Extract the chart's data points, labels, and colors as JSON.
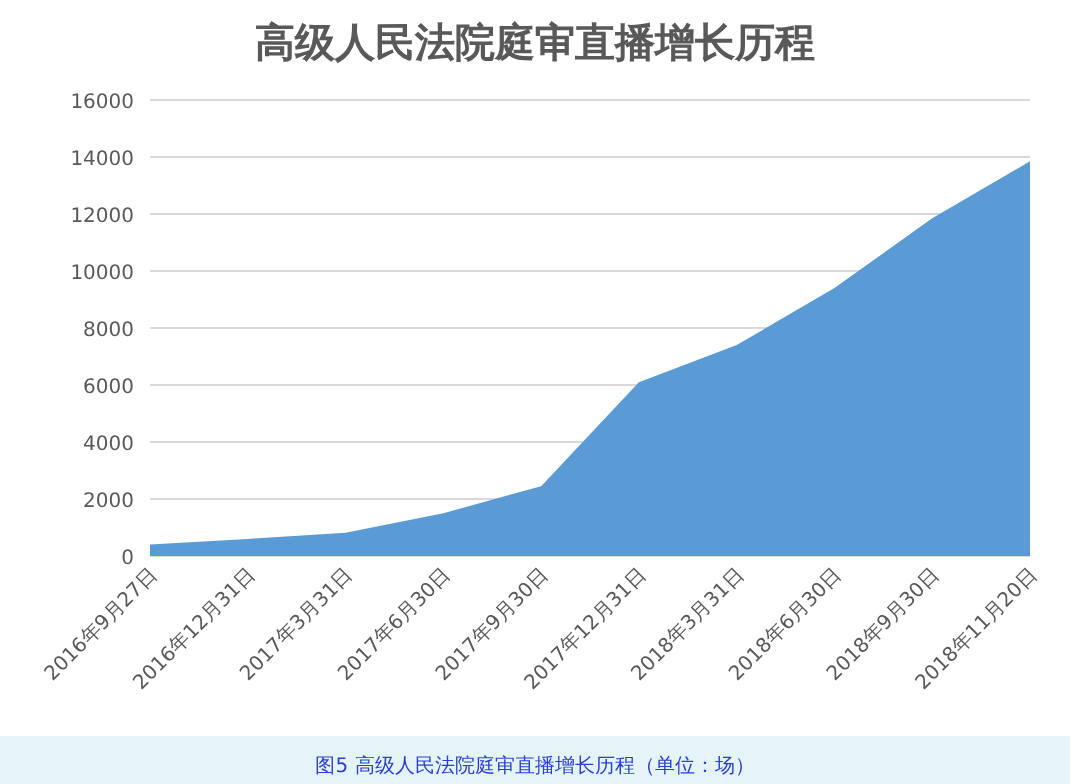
{
  "chart_data": {
    "type": "area",
    "title": "高级人民法院庭审直播增长历程",
    "categories": [
      "2016年9月27日",
      "2016年12月31日",
      "2017年3月31日",
      "2017年6月30日",
      "2017年9月30日",
      "2017年12月31日",
      "2018年3月31日",
      "2018年6月30日",
      "2018年9月30日",
      "2018年11月20日"
    ],
    "series": [
      {
        "color": "#5b9bd5",
        "values": [
          400,
          600,
          820,
          1500,
          2450,
          6100,
          7400,
          9400,
          11850,
          13850
        ]
      }
    ],
    "ylim": [
      0,
      16000
    ],
    "yticks": [
      0,
      2000,
      4000,
      6000,
      8000,
      10000,
      12000,
      14000,
      16000
    ],
    "grid": "y",
    "annotations": [
      "图5 高级人民法院庭审直播增长历程（单位：场）"
    ]
  }
}
